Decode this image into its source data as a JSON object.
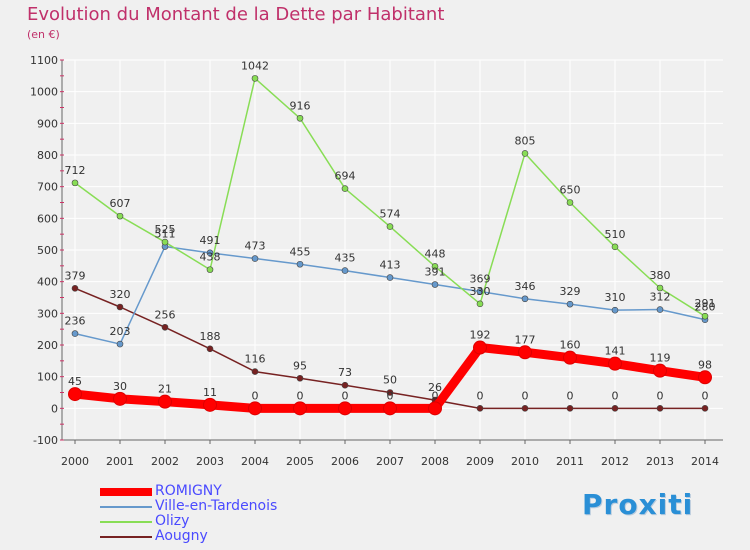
{
  "header": {
    "title": "Evolution du Montant de la Dette par Habitant",
    "unit": "(en €)"
  },
  "brand": "Proxiti",
  "colors": {
    "title": "#c0306a",
    "axis": "#333333",
    "grid": "#ffffff",
    "legend_text": "#4a4aff"
  },
  "chart_data": {
    "type": "line",
    "title": "Evolution du Montant de la Dette par Habitant",
    "ylabel": "(en €)",
    "xlabel": "",
    "ylim": [
      -100,
      1100
    ],
    "yticks": [
      "-100",
      "0",
      "100",
      "200",
      "300",
      "400",
      "500",
      "600",
      "700",
      "800",
      "900",
      "1000",
      "1100"
    ],
    "x": [
      "2000",
      "2001",
      "2002",
      "2003",
      "2004",
      "2005",
      "2006",
      "2007",
      "2008",
      "2009",
      "2010",
      "2011",
      "2012",
      "2013",
      "2014"
    ],
    "grid": true,
    "legend_position": "bottom-left",
    "series": [
      {
        "name": "ROMIGNY",
        "color": "#ff0000",
        "values": [
          45,
          30,
          21,
          11,
          0,
          0,
          0,
          0,
          0,
          192,
          177,
          160,
          141,
          119,
          98
        ],
        "labels": [
          "45",
          "30",
          "21",
          "11",
          "0",
          "0",
          "0",
          "0",
          "0",
          "192",
          "177",
          "160",
          "141",
          "119",
          "98"
        ]
      },
      {
        "name": "Ville-en-Tardenois",
        "color": "#6699cc",
        "values": [
          236,
          203,
          511,
          491,
          473,
          455,
          435,
          413,
          391,
          369,
          346,
          329,
          310,
          312,
          280
        ],
        "labels": [
          "236",
          "203",
          "511",
          "491",
          "473",
          "455",
          "435",
          "413",
          "391",
          "369",
          "346",
          "329",
          "310",
          "312",
          "280"
        ]
      },
      {
        "name": "Olizy",
        "color": "#88dd55",
        "values": [
          712,
          607,
          525,
          438,
          1042,
          916,
          694,
          574,
          448,
          330,
          805,
          650,
          510,
          380,
          291
        ],
        "labels": [
          "712",
          "607",
          "525",
          "438",
          "1042",
          "916",
          "694",
          "574",
          "448",
          "330",
          "805",
          "650",
          "510",
          "380",
          "291"
        ]
      },
      {
        "name": "Aougny",
        "color": "#772222",
        "values": [
          379,
          320,
          256,
          188,
          116,
          95,
          73,
          50,
          26,
          0,
          0,
          0,
          0,
          0,
          0
        ],
        "labels": [
          "379",
          "320",
          "256",
          "188",
          "116",
          "95",
          "73",
          "50",
          "26",
          "0",
          "0",
          "0",
          "0",
          "0",
          "0"
        ]
      }
    ]
  }
}
